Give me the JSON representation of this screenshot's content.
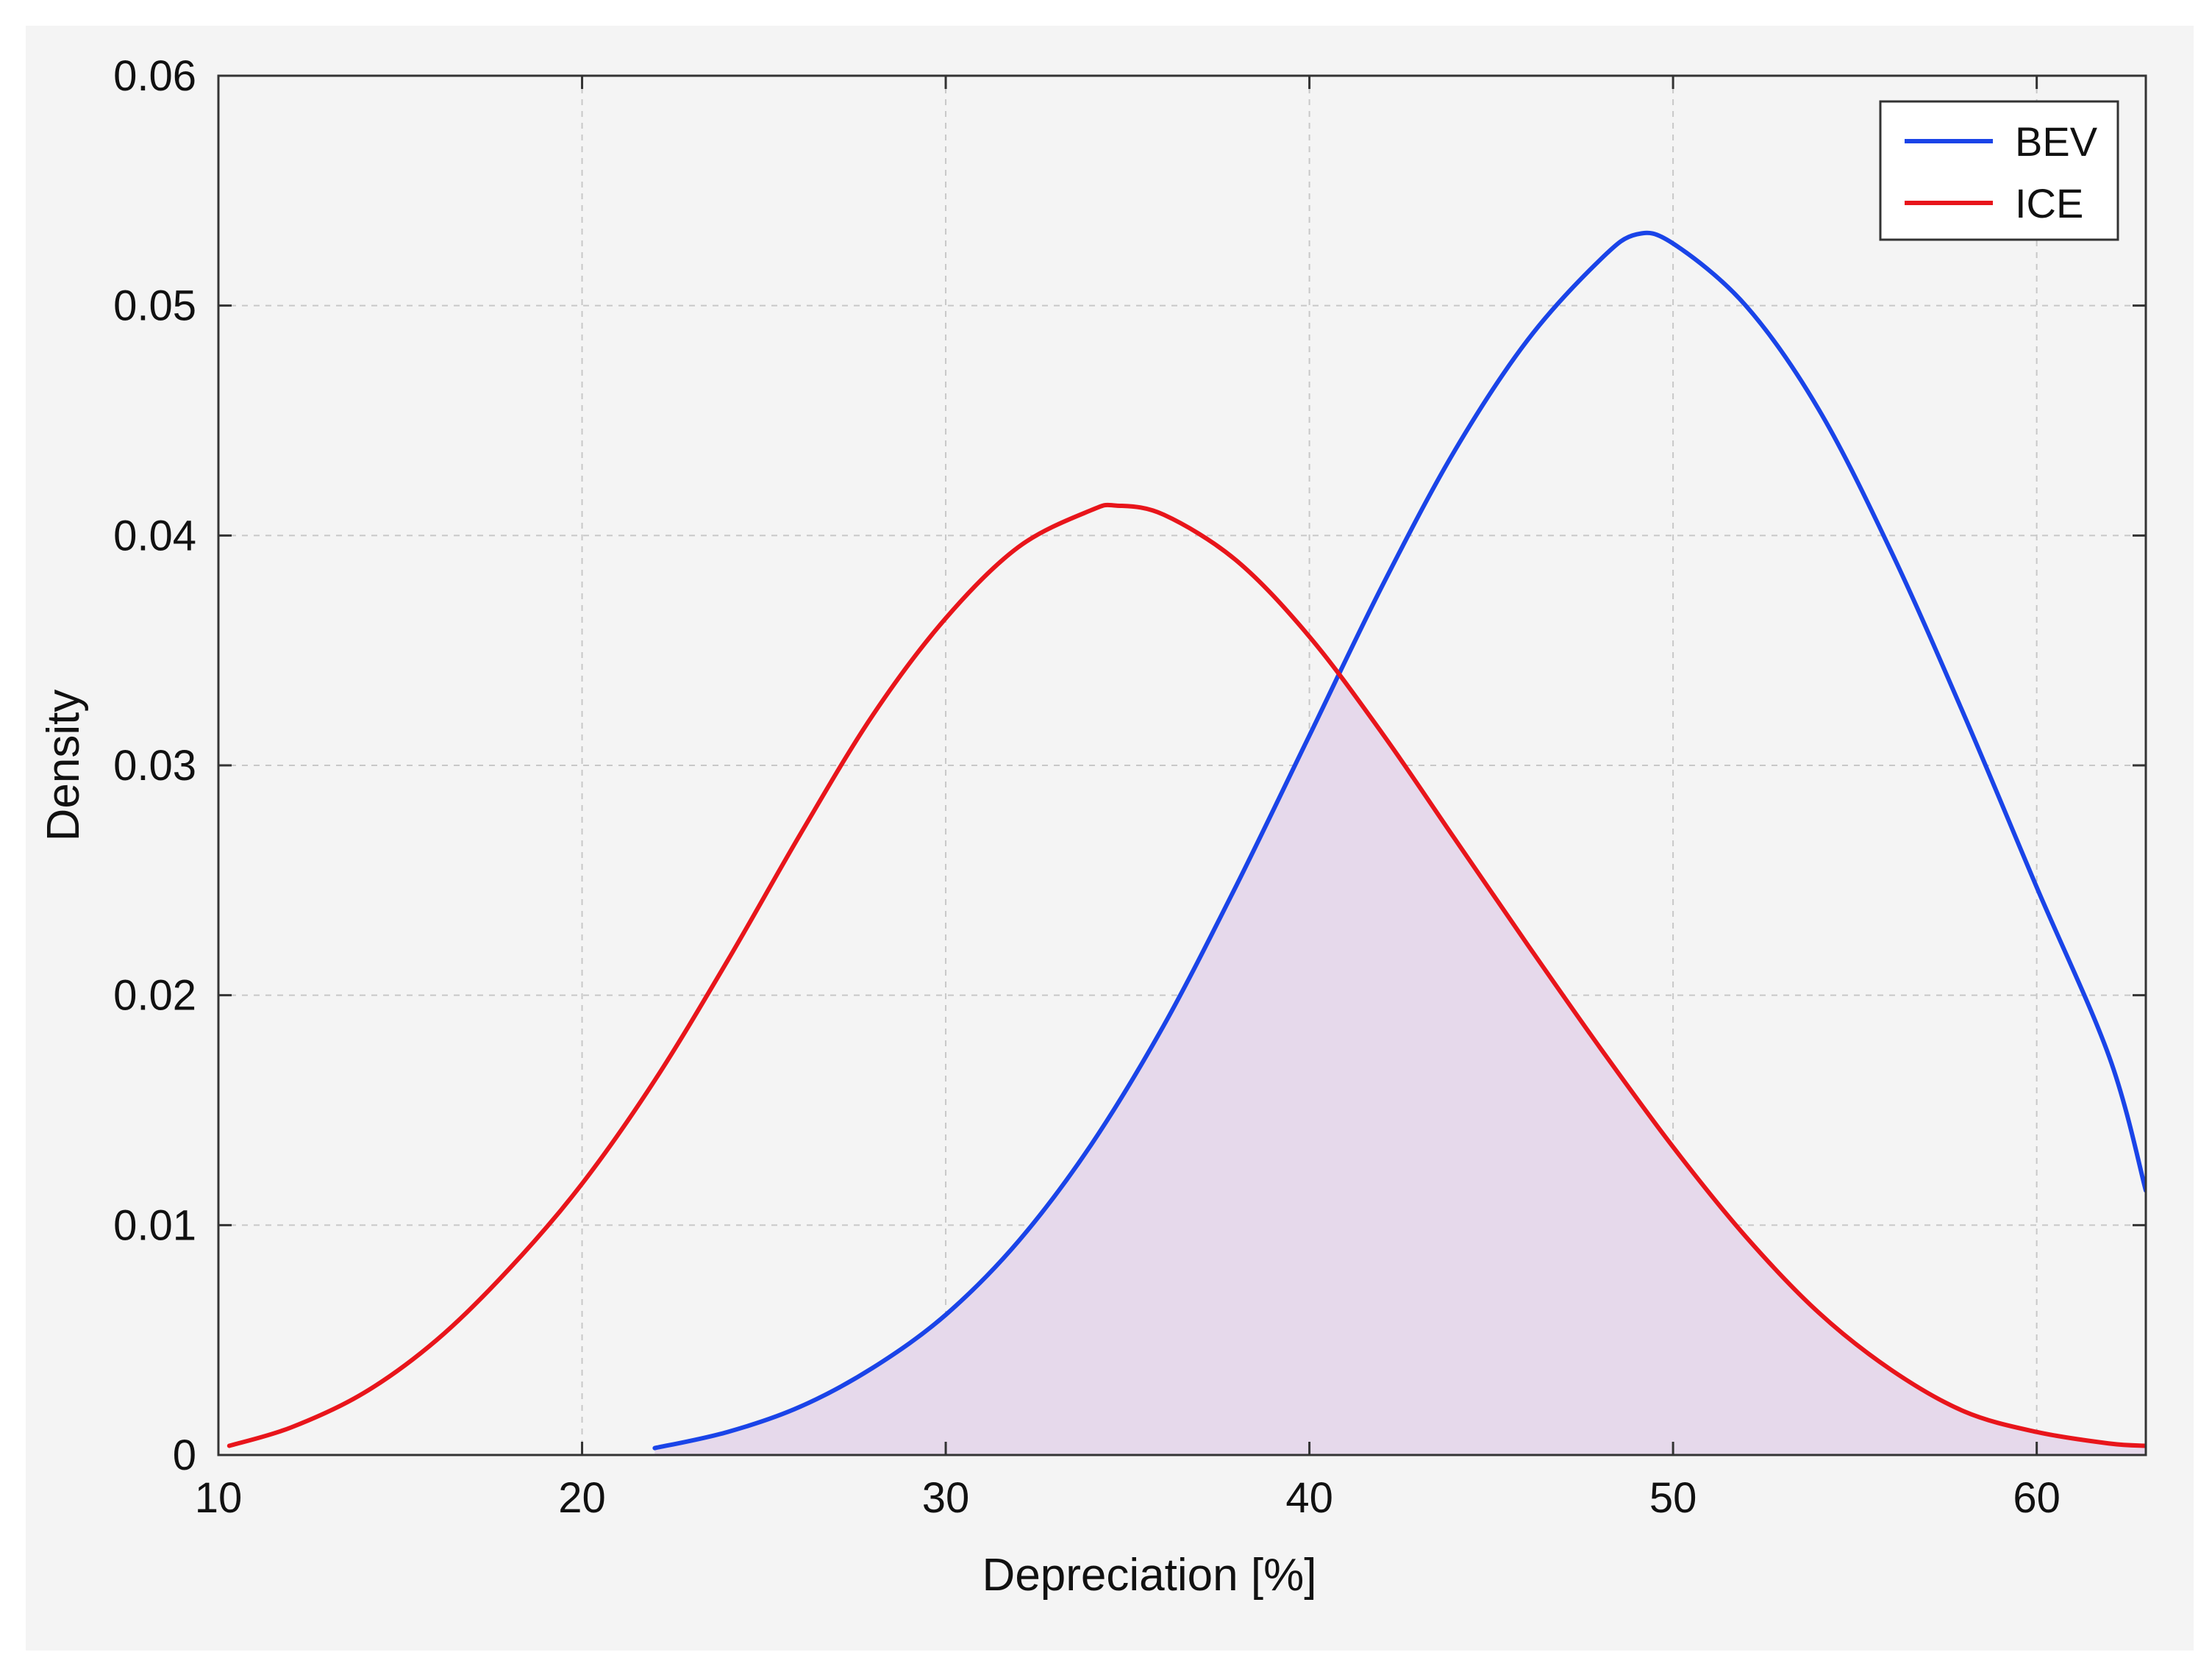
{
  "chart_data": {
    "type": "line",
    "title": "",
    "xlabel": "Depreciation [%]",
    "ylabel": "Density",
    "xlim": [
      10,
      63
    ],
    "ylim": [
      0,
      0.06
    ],
    "xticks": [
      10,
      20,
      30,
      40,
      50,
      60
    ],
    "xtick_labels": [
      "10",
      "20",
      "30",
      "40",
      "50",
      "60"
    ],
    "yticks": [
      0,
      0.01,
      0.02,
      0.03,
      0.04,
      0.05,
      0.06
    ],
    "ytick_labels": [
      "0",
      "0.01",
      "0.02",
      "0.03",
      "0.04",
      "0.05",
      "0.06"
    ],
    "grid": true,
    "legend_position": "top-right",
    "series": [
      {
        "name": "BEV",
        "color": "#1a44e8",
        "x": [
          22,
          24,
          26,
          28,
          30,
          32,
          34,
          36,
          38,
          40,
          42,
          44,
          46,
          48,
          49,
          50,
          52,
          54,
          56,
          58,
          60,
          62,
          63
        ],
        "y": [
          0.0003,
          0.001,
          0.0021,
          0.0038,
          0.0061,
          0.0093,
          0.0135,
          0.0187,
          0.0248,
          0.0313,
          0.0378,
          0.0437,
          0.0485,
          0.052,
          0.0531,
          0.0527,
          0.05,
          0.0455,
          0.0393,
          0.0322,
          0.0247,
          0.0173,
          0.0115
        ]
      },
      {
        "name": "ICE",
        "color": "#e8151b",
        "x": [
          10.3,
          12,
          14,
          16,
          18,
          20,
          22,
          24,
          26,
          28,
          30,
          32,
          34,
          34.7,
          36,
          38,
          40,
          42,
          44,
          46,
          48,
          50,
          52,
          54,
          56,
          58,
          60,
          62,
          63
        ],
        "y": [
          0.0004,
          0.0012,
          0.0027,
          0.005,
          0.0081,
          0.0118,
          0.0163,
          0.0215,
          0.027,
          0.0322,
          0.0364,
          0.0395,
          0.0411,
          0.0413,
          0.0409,
          0.0389,
          0.0356,
          0.0314,
          0.0268,
          0.0222,
          0.0177,
          0.0134,
          0.0095,
          0.0062,
          0.0037,
          0.0019,
          0.001,
          0.0005,
          0.0004
        ]
      }
    ],
    "overlap_fill": {
      "color": "#e6d9eb",
      "between": [
        "BEV",
        "ICE"
      ],
      "x_range": [
        22,
        63
      ]
    }
  }
}
